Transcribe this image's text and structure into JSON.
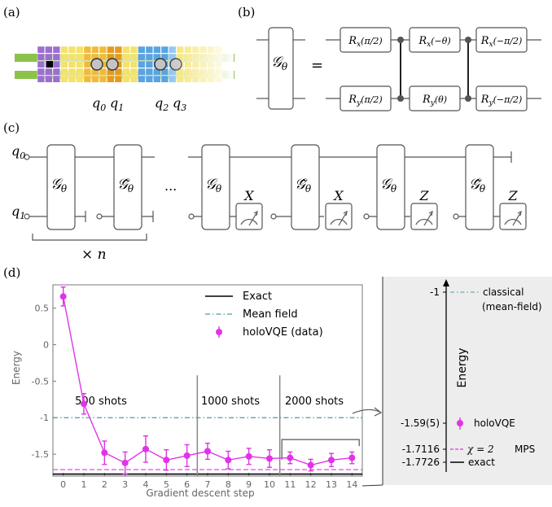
{
  "panels": {
    "a": "(a)",
    "b": "(b)",
    "c": "(c)",
    "d": "(d)"
  },
  "panel_a": {
    "qubits": [
      "q",
      "q",
      "q",
      "q"
    ],
    "subscripts": [
      "0",
      "1",
      "2",
      "3"
    ]
  },
  "panel_b": {
    "gate_symbol": "𝒢",
    "gate_subscript": "θ",
    "equals": "=",
    "gates": [
      {
        "axis": "x",
        "arg": "(π/2)"
      },
      {
        "axis": "x",
        "arg": "(−θ)"
      },
      {
        "axis": "x",
        "arg": "(−π/2)"
      },
      {
        "axis": "y",
        "arg": "(π/2)"
      },
      {
        "axis": "y",
        "arg": "(θ)"
      },
      {
        "axis": "y",
        "arg": "(−π/2)"
      }
    ],
    "gate_letter": "R"
  },
  "panel_c": {
    "q0": "q",
    "q0_sub": "0",
    "q1": "q",
    "q1_sub": "1",
    "gate": "𝒢",
    "gate_sub": "θ",
    "tilde_gate": "𝒢̃",
    "ellipsis": "...",
    "repeat": "× n",
    "measurements": [
      "X",
      "X",
      "Z",
      "Z"
    ]
  },
  "chart_data": {
    "type": "line",
    "xlabel": "Gradient descent step",
    "ylabel": "Energy",
    "x": [
      0,
      1,
      2,
      3,
      4,
      5,
      6,
      7,
      8,
      9,
      10,
      11,
      12,
      13,
      14
    ],
    "xlim": [
      -0.5,
      14.5
    ],
    "ylim": [
      -1.8,
      0.82
    ],
    "yticks": [
      0.5,
      0,
      -0.5,
      -1,
      -1.5
    ],
    "ytick_labels": [
      "0.5",
      "0",
      "-0.5",
      "-1",
      "-1.5"
    ],
    "series": [
      {
        "name": "holoVQE (data)",
        "color": "#e033e8",
        "values": [
          0.66,
          -0.81,
          -1.48,
          -1.62,
          -1.43,
          -1.58,
          -1.52,
          -1.46,
          -1.58,
          -1.53,
          -1.56,
          -1.55,
          -1.65,
          -1.58,
          -1.55
        ],
        "errors": [
          0.13,
          0.14,
          0.16,
          0.15,
          0.18,
          0.14,
          0.15,
          0.11,
          0.12,
          0.11,
          0.12,
          0.08,
          0.08,
          0.09,
          0.08
        ]
      }
    ],
    "reference_lines": [
      {
        "name": "Exact",
        "value": -1.7726,
        "color": "#000000",
        "style": "solid"
      },
      {
        "name": "Mean field",
        "value": -1.0,
        "color": "#4a9aa8",
        "style": "dashdot"
      },
      {
        "name": "",
        "value": -1.7116,
        "color": "#e033e8",
        "style": "dashed"
      }
    ],
    "regions": [
      "500 shots",
      "1000 shots",
      "2000 shots"
    ],
    "legend": [
      "Exact",
      "Mean field",
      "holoVQE (data)"
    ],
    "legend_position": "top-right"
  },
  "inset": {
    "ylabel": "Energy",
    "ticks": [
      "-1",
      "-1.59(5)",
      "-1.7116",
      "-1.7726"
    ],
    "labels": [
      "classical",
      "(mean-field)",
      "holoVQE",
      "MPS",
      "exact"
    ],
    "chi_label": "χ = 2"
  }
}
